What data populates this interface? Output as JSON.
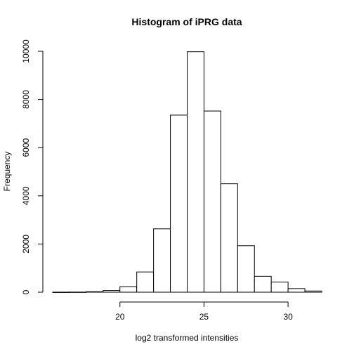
{
  "chart_data": {
    "type": "bar",
    "subtype": "histogram",
    "title": "Histogram of iPRG data",
    "xlabel": "log2 transformed intensities",
    "ylabel": "Frequency",
    "bin_edges": [
      16,
      17,
      18,
      19,
      20,
      21,
      22,
      23,
      24,
      25,
      26,
      27,
      28,
      29,
      30,
      31,
      32
    ],
    "values": [
      2,
      5,
      20,
      70,
      230,
      840,
      2630,
      7350,
      9980,
      7520,
      4500,
      1930,
      660,
      420,
      150,
      50
    ],
    "xlim": [
      16,
      32
    ],
    "ylim": [
      0,
      10000
    ],
    "xticks": [
      20,
      25,
      30
    ],
    "yticks": [
      0,
      2000,
      4000,
      6000,
      8000,
      10000
    ],
    "grid": false,
    "legend": "none",
    "bar_fill": "#ffffff",
    "bar_stroke": "#000000"
  }
}
